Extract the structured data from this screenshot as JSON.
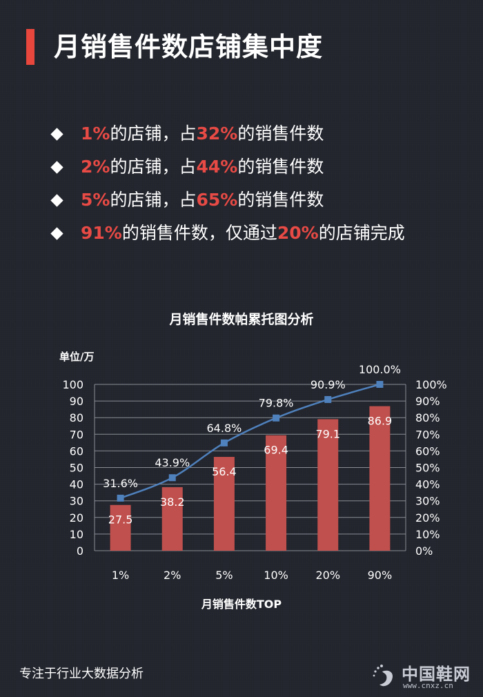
{
  "header": {
    "title": "月销售件数店铺集中度"
  },
  "bullets": [
    {
      "a": "1%",
      "b": "的店铺，占",
      "c": "32%",
      "d": "的销售件数"
    },
    {
      "a": "2%",
      "b": "的店铺，占",
      "c": "44%",
      "d": "的销售件数"
    },
    {
      "a": "5%",
      "b": "的店铺，占",
      "c": "65%",
      "d": "的销售件数"
    },
    {
      "a": "91%",
      "b": "的销售件数，仅通过",
      "c": "20%",
      "d": "的店铺完成"
    }
  ],
  "colors": {
    "accent": "#e8473d",
    "bar": "#c0504d",
    "line": "#4f81bd",
    "background": "#23262e"
  },
  "chart_data": {
    "type": "bar",
    "title": "月销售件数帕累托图分析",
    "xlabel": "月销售件数TOP",
    "ylabel": "单位/万",
    "categories": [
      "1%",
      "2%",
      "5%",
      "10%",
      "20%",
      "90%"
    ],
    "series": [
      {
        "type": "bar",
        "axis": "left",
        "values": [
          27.5,
          38.2,
          56.4,
          69.4,
          79.1,
          86.9
        ],
        "labels": [
          "27.5",
          "38.2",
          "56.4",
          "69.4",
          "79.1",
          "86.9"
        ]
      },
      {
        "type": "line",
        "axis": "right",
        "values": [
          31.6,
          43.9,
          64.8,
          79.8,
          90.9,
          100.0
        ],
        "labels": [
          "31.6%",
          "43.9%",
          "64.8%",
          "79.8%",
          "90.9%",
          "100.0%"
        ]
      }
    ],
    "ylim": [
      0,
      100
    ],
    "y2lim": [
      0,
      100
    ],
    "yticks": [
      "0",
      "10",
      "20",
      "30",
      "40",
      "50",
      "60",
      "70",
      "80",
      "90",
      "100"
    ],
    "y2ticks": [
      "0%",
      "10%",
      "20%",
      "30%",
      "40%",
      "50%",
      "60%",
      "70%",
      "80%",
      "90%",
      "100%"
    ],
    "grid": true,
    "legend": "none"
  },
  "footer": {
    "text": "专注于行业大数据分析"
  },
  "logo": {
    "name": "中国鞋网",
    "url": "www.cnxz.cn"
  }
}
